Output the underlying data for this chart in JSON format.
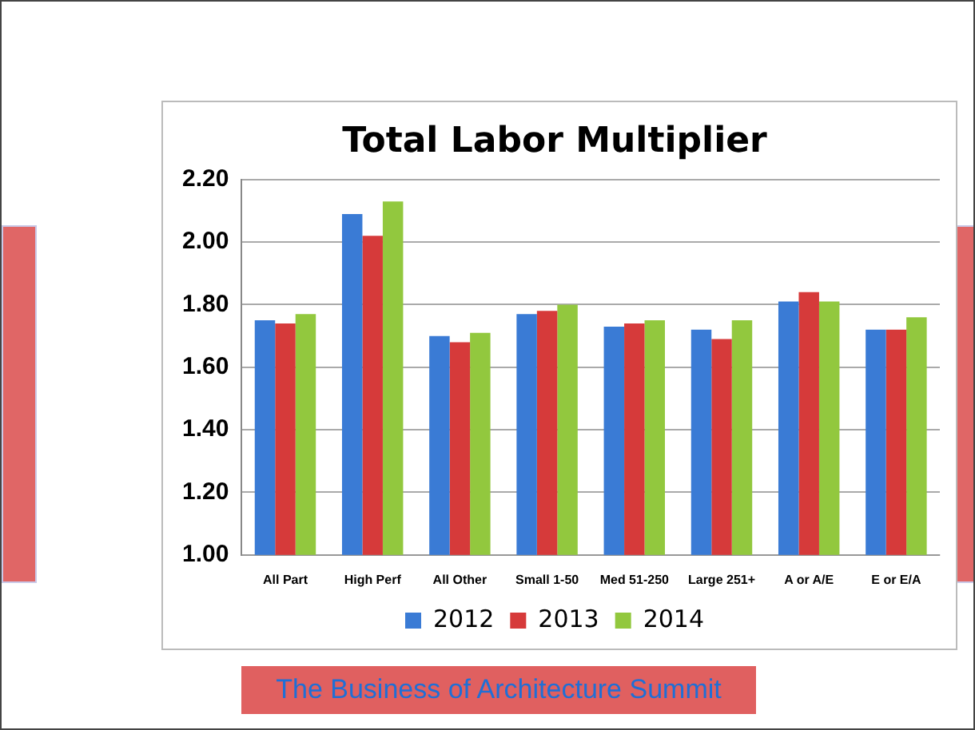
{
  "chart_data": {
    "type": "bar",
    "title": "Total Labor Multiplier",
    "categories": [
      "All Part",
      "High Perf",
      "All Other",
      "Small 1-50",
      "Med 51-250",
      "Large 251+",
      "A or A/E",
      "E or E/A"
    ],
    "series": [
      {
        "name": "2012",
        "color": "#3a7bd5",
        "values": [
          1.75,
          2.09,
          1.7,
          1.77,
          1.73,
          1.72,
          1.81,
          1.72
        ]
      },
      {
        "name": "2013",
        "color": "#d63a3a",
        "values": [
          1.74,
          2.02,
          1.68,
          1.78,
          1.74,
          1.69,
          1.84,
          1.72
        ]
      },
      {
        "name": "2014",
        "color": "#92c83e",
        "values": [
          1.77,
          2.13,
          1.71,
          1.8,
          1.75,
          1.75,
          1.81,
          1.76
        ]
      }
    ],
    "ylim": [
      1.0,
      2.2
    ],
    "yticks": [
      {
        "value": 1.0,
        "label": "1.00"
      },
      {
        "value": 1.2,
        "label": "1.20"
      },
      {
        "value": 1.4,
        "label": "1.40"
      },
      {
        "value": 1.6,
        "label": "1.60"
      },
      {
        "value": 1.8,
        "label": "1.80"
      },
      {
        "value": 2.0,
        "label": "2.00"
      },
      {
        "value": 2.2,
        "label": "2.20"
      }
    ],
    "grid": "y",
    "legend": "bottom",
    "annotations": [
      "The Business of Architecture Summit"
    ]
  }
}
